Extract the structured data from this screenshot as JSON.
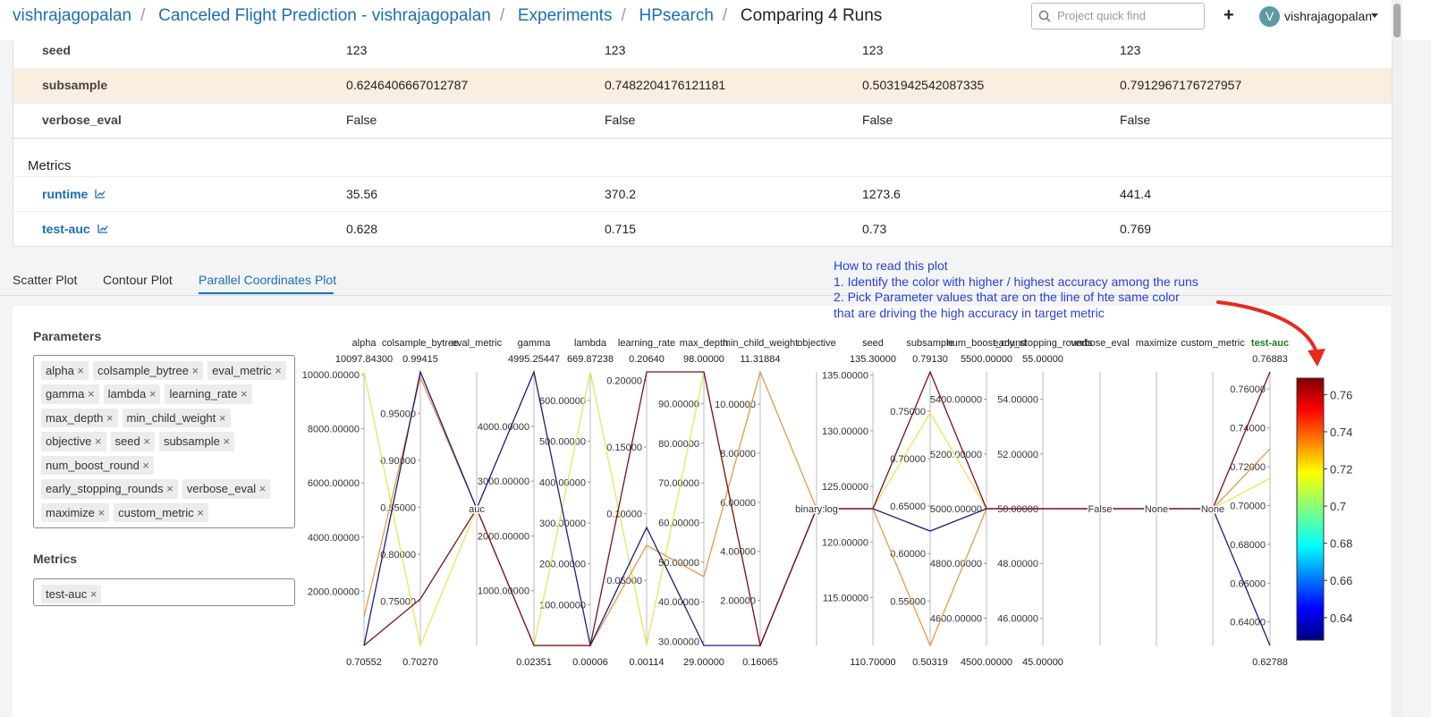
{
  "breadcrumb": [
    "vishrajagopalan",
    "Canceled Flight Prediction - vishrajagopalan",
    "Experiments",
    "HPsearch",
    "Comparing 4 Runs"
  ],
  "search_placeholder": "Project quick find",
  "add_button": "+",
  "user": {
    "initial": "V",
    "name": "vishrajagopalan"
  },
  "params_table": {
    "rows": [
      [
        "seed",
        "123",
        "123",
        "123",
        "123"
      ],
      [
        "subsample",
        "0.6246406667012787",
        "0.7482204176121181",
        "0.5031942542087335",
        "0.7912967176727957"
      ],
      [
        "verbose_eval",
        "False",
        "False",
        "False",
        "False"
      ]
    ]
  },
  "metrics_table": {
    "title": "Metrics",
    "rows": [
      [
        "runtime",
        "35.56",
        "370.2",
        "1273.6",
        "441.4"
      ],
      [
        "test-auc",
        "0.628",
        "0.715",
        "0.73",
        "0.769"
      ]
    ]
  },
  "tabs": [
    "Scatter Plot",
    "Contour Plot",
    "Parallel Coordinates Plot"
  ],
  "annotation": [
    "How to read this plot",
    "1. Identify the color with higher / highest accuracy among the runs",
    "2. Pick Parameter values that are on the line of hte same color",
    "that are driving the high accuracy in target metric"
  ],
  "sidebar": {
    "parameters_title": "Parameters",
    "parameters": [
      "alpha",
      "colsample_bytree",
      "eval_metric",
      "gamma",
      "lambda",
      "learning_rate",
      "max_depth",
      "min_child_weight",
      "objective",
      "seed",
      "subsample",
      "num_boost_round",
      "early_stopping_rounds",
      "verbose_eval",
      "maximize",
      "custom_metric"
    ],
    "metrics_title": "Metrics",
    "metrics": [
      "test-auc"
    ]
  },
  "plot": {
    "axes": [
      {
        "name": "alpha",
        "top": "10097.84300",
        "bottom": "0.70552",
        "ticks": [
          "10000.00000",
          "8000.00000",
          "6000.00000",
          "4000.00000",
          "2000.00000"
        ]
      },
      {
        "name": "colsample_bytree",
        "top": "0.99415",
        "bottom": "0.70270",
        "ticks": [
          "0.95000",
          "0.90000",
          "0.85000",
          "0.80000",
          "0.75000"
        ]
      },
      {
        "name": "eval_metric",
        "ticks": [
          "auc"
        ]
      },
      {
        "name": "gamma",
        "top": "4995.25447",
        "bottom": "0.02351",
        "ticks": [
          "4000.00000",
          "3000.00000",
          "2000.00000",
          "1000.00000"
        ]
      },
      {
        "name": "lambda",
        "top": "669.87238",
        "bottom": "0.00006",
        "ticks": [
          "600.00000",
          "500.00000",
          "400.00000",
          "300.00000",
          "200.00000",
          "100.00000"
        ]
      },
      {
        "name": "learning_rate",
        "top": "0.20640",
        "bottom": "0.00114",
        "ticks": [
          "0.20000",
          "0.15000",
          "0.10000",
          "0.05000"
        ]
      },
      {
        "name": "max_depth",
        "top": "98.00000",
        "bottom": "29.00000",
        "ticks": [
          "90.00000",
          "80.00000",
          "70.00000",
          "60.00000",
          "50.00000",
          "40.00000",
          "30.00000"
        ]
      },
      {
        "name": "min_child_weight",
        "top": "11.31884",
        "bottom": "0.16065",
        "ticks": [
          "10.00000",
          "8.00000",
          "6.00000",
          "4.00000",
          "2.00000"
        ]
      },
      {
        "name": "objective",
        "ticks": [
          "binary:log"
        ]
      },
      {
        "name": "seed",
        "top": "135.30000",
        "bottom": "110.70000",
        "ticks": [
          "135.00000",
          "130.00000",
          "125.00000",
          "120.00000",
          "115.00000"
        ]
      },
      {
        "name": "subsample",
        "top": "0.79130",
        "bottom": "0.50319",
        "ticks": [
          "0.75000",
          "0.70000",
          "0.65000",
          "0.60000",
          "0.55000"
        ]
      },
      {
        "name": "num_boost_round",
        "top": "5500.00000",
        "bottom": "4500.00000",
        "ticks": [
          "5400.00000",
          "5200.00000",
          "5000.00000",
          "4800.00000",
          "4600.00000"
        ]
      },
      {
        "name": "early_stopping_rounds",
        "top": "55.00000",
        "bottom": "45.00000",
        "ticks": [
          "54.00000",
          "52.00000",
          "50.00000",
          "48.00000",
          "46.00000"
        ]
      },
      {
        "name": "verbose_eval",
        "ticks": [
          "False"
        ]
      },
      {
        "name": "maximize",
        "ticks": [
          "None"
        ]
      },
      {
        "name": "custom_metric",
        "ticks": [
          "None"
        ]
      },
      {
        "name": "test-auc",
        "top": "0.76883",
        "bottom": "0.62788",
        "ticks": [
          "0.76000",
          "0.74000",
          "0.72000",
          "0.70000",
          "0.68000",
          "0.66000",
          "0.64000"
        ]
      }
    ],
    "colorbar_ticks": [
      "0.76",
      "0.74",
      "0.72",
      "0.7",
      "0.68",
      "0.66",
      "0.64"
    ]
  }
}
